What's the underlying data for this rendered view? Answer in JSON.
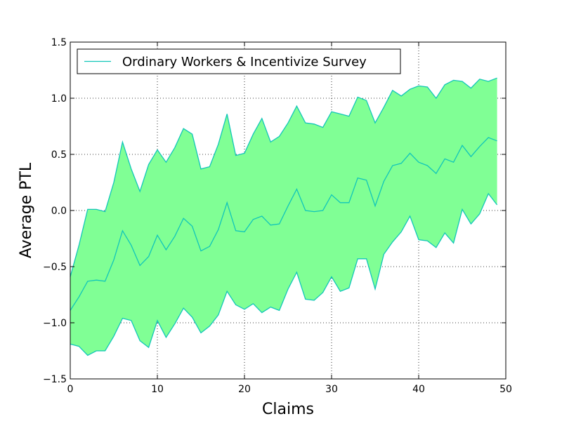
{
  "chart_data": {
    "type": "area",
    "xlabel": "Claims",
    "ylabel": "Average PTL",
    "xlim": [
      0,
      50
    ],
    "ylim": [
      -1.5,
      1.5
    ],
    "xticks": [
      0,
      10,
      20,
      30,
      40,
      50
    ],
    "yticks": [
      -1.5,
      -1.0,
      -0.5,
      0.0,
      0.5,
      1.0,
      1.5
    ],
    "xtick_labels": [
      "0",
      "10",
      "20",
      "30",
      "40",
      "50"
    ],
    "ytick_labels": [
      "−1.5",
      "−1.0",
      "−0.5",
      "0.0",
      "0.5",
      "1.0",
      "1.5"
    ],
    "grid": true,
    "legend_position": "upper-left",
    "series": [
      {
        "name": "Ordinary Workers & Incentivize Survey",
        "line_color": "#11c6b8",
        "fill_color": "#80ff95",
        "x": [
          0,
          1,
          2,
          3,
          4,
          5,
          6,
          7,
          8,
          9,
          10,
          11,
          12,
          13,
          14,
          15,
          16,
          17,
          18,
          19,
          20,
          21,
          22,
          23,
          24,
          25,
          26,
          27,
          28,
          29,
          30,
          31,
          32,
          33,
          34,
          35,
          36,
          37,
          38,
          39,
          40,
          41,
          42,
          43,
          44,
          45,
          46,
          47,
          48,
          49
        ],
        "mean": [
          -0.89,
          -0.77,
          -0.63,
          -0.62,
          -0.63,
          -0.44,
          -0.18,
          -0.31,
          -0.49,
          -0.41,
          -0.22,
          -0.35,
          -0.23,
          -0.07,
          -0.14,
          -0.36,
          -0.32,
          -0.17,
          0.07,
          -0.18,
          -0.19,
          -0.08,
          -0.05,
          -0.13,
          -0.12,
          0.04,
          0.19,
          0.0,
          -0.01,
          0.0,
          0.14,
          0.07,
          0.07,
          0.29,
          0.27,
          0.04,
          0.26,
          0.4,
          0.42,
          0.51,
          0.43,
          0.4,
          0.33,
          0.46,
          0.43,
          0.58,
          0.48,
          0.57,
          0.65,
          0.62
        ],
        "upper": [
          -0.59,
          -0.31,
          0.01,
          0.01,
          -0.01,
          0.25,
          0.61,
          0.37,
          0.17,
          0.41,
          0.54,
          0.43,
          0.56,
          0.73,
          0.68,
          0.37,
          0.39,
          0.59,
          0.86,
          0.49,
          0.51,
          0.68,
          0.82,
          0.61,
          0.66,
          0.78,
          0.93,
          0.78,
          0.77,
          0.74,
          0.88,
          0.86,
          0.84,
          1.01,
          0.98,
          0.78,
          0.92,
          1.07,
          1.02,
          1.08,
          1.11,
          1.1,
          1.0,
          1.12,
          1.16,
          1.15,
          1.09,
          1.17,
          1.15,
          1.18
        ],
        "lower": [
          -1.19,
          -1.21,
          -1.29,
          -1.25,
          -1.25,
          -1.12,
          -0.96,
          -0.98,
          -1.16,
          -1.22,
          -0.98,
          -1.13,
          -1.01,
          -0.87,
          -0.95,
          -1.09,
          -1.03,
          -0.93,
          -0.72,
          -0.84,
          -0.88,
          -0.83,
          -0.91,
          -0.86,
          -0.89,
          -0.7,
          -0.55,
          -0.79,
          -0.8,
          -0.73,
          -0.59,
          -0.72,
          -0.69,
          -0.43,
          -0.43,
          -0.7,
          -0.39,
          -0.28,
          -0.19,
          -0.05,
          -0.26,
          -0.27,
          -0.33,
          -0.2,
          -0.29,
          0.01,
          -0.12,
          -0.03,
          0.15,
          0.05
        ]
      }
    ]
  }
}
